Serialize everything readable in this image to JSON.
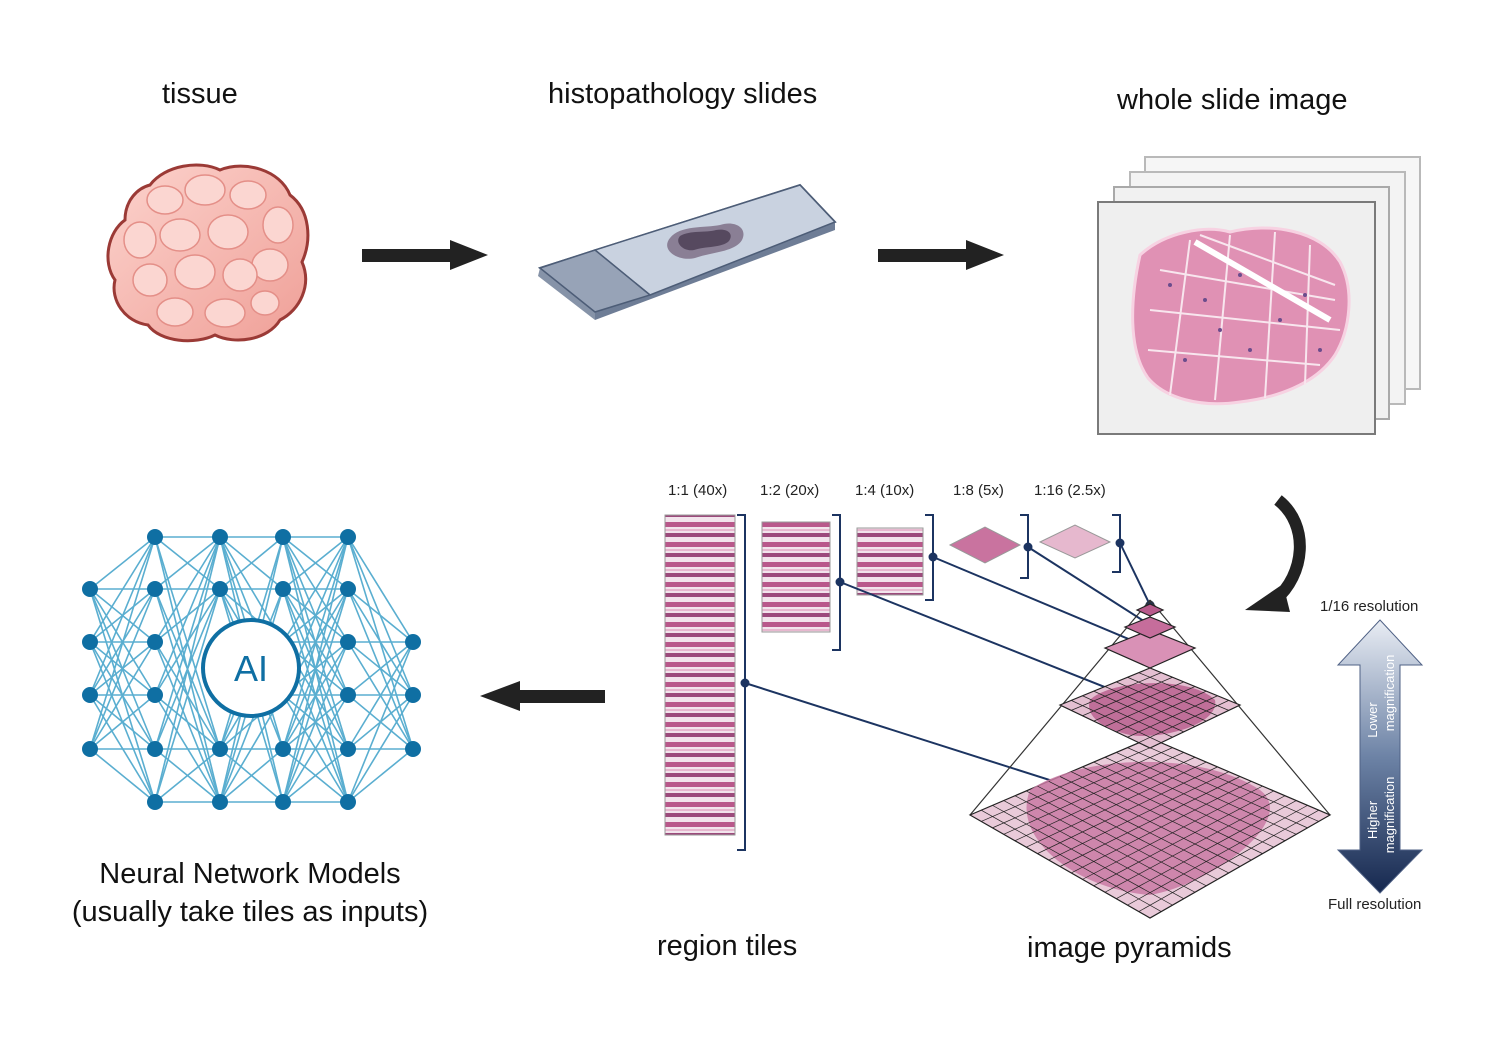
{
  "labels": {
    "tissue": "tissue",
    "slides": "histopathology slides",
    "wsi": "whole slide image",
    "region_tiles": "region tiles",
    "image_pyramids": "image pyramids",
    "nn_line1": "Neural Network Models",
    "nn_line2": "(usually take tiles as inputs)",
    "ai": "AI"
  },
  "scales": [
    "1:1 (40x)",
    "1:2 (20x)",
    "1:4 (10x)",
    "1:8 (5x)",
    "1:16 (2.5x)"
  ],
  "resolution_axis": {
    "top": "1/16 resolution",
    "bottom": "Full resolution",
    "upper_line1": "Lower",
    "upper_line2": "magnification",
    "lower_line1": "Higher",
    "lower_line2": "magnification"
  },
  "colors": {
    "tissue_fill": "#f4b3ad",
    "tissue_edge": "#9b3a36",
    "he_pink": "#d9669c",
    "nn_line": "#5aaed0",
    "nn_node": "#0f6fa3",
    "navy": "#1c3461",
    "arrow": "#222222"
  }
}
